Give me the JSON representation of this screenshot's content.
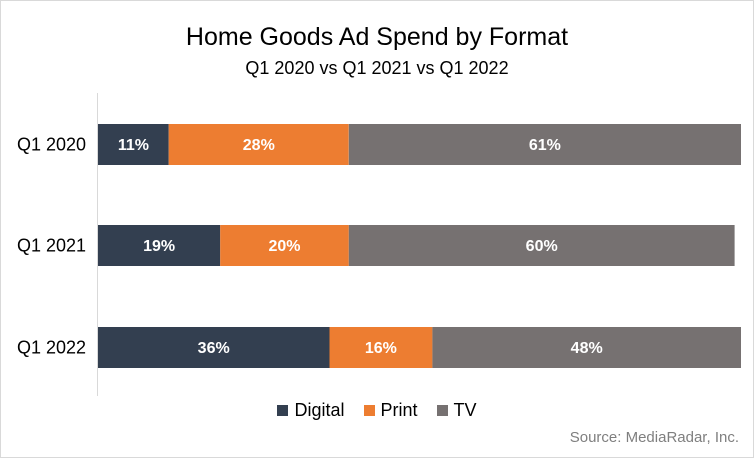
{
  "chart_data": {
    "type": "bar",
    "orientation": "horizontal",
    "stacked": true,
    "percent_stacked": true,
    "title": "Home Goods Ad Spend by Format",
    "subtitle": "Q1 2020 vs Q1 2021 vs Q1 2022",
    "categories": [
      "Q1 2020",
      "Q1 2021",
      "Q1 2022"
    ],
    "series": [
      {
        "name": "Digital",
        "color": "#333f50",
        "values": [
          11,
          19,
          36
        ],
        "labels": [
          "11%",
          "19%",
          "36%"
        ]
      },
      {
        "name": "Print",
        "color": "#ed7d31",
        "values": [
          28,
          20,
          16
        ],
        "labels": [
          "28%",
          "20%",
          "16%"
        ]
      },
      {
        "name": "TV",
        "color": "#767171",
        "values": [
          61,
          60,
          48
        ],
        "labels": [
          "61%",
          "60%",
          "48%"
        ]
      }
    ],
    "xlim": [
      0,
      100
    ],
    "grid": false,
    "legend_position": "bottom",
    "source": "Source: MediaRadar, Inc."
  }
}
